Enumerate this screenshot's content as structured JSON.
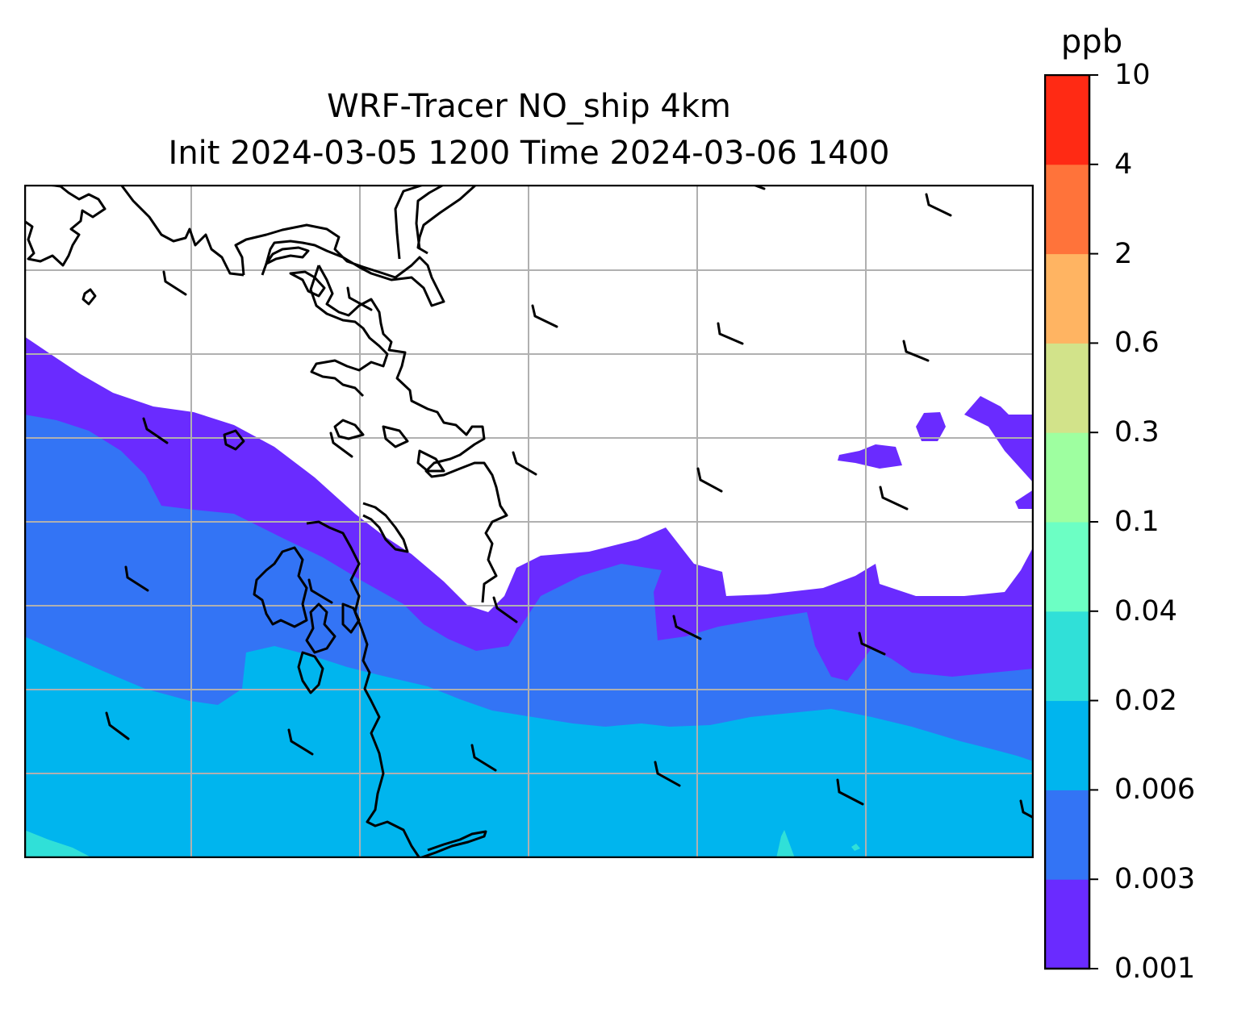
{
  "title": {
    "line1": "WRF-Tracer NO_ship 4km",
    "line2": "Init 2024-03-05 1200 Time 2024-03-06 1400"
  },
  "colorbar": {
    "unit": "ppb",
    "levels": [
      "0.001",
      "0.003",
      "0.006",
      "0.02",
      "0.04",
      "0.1",
      "0.3",
      "0.6",
      "2",
      "4",
      "10"
    ],
    "colors": [
      "#6a2bff",
      "#3374f5",
      "#00b5ee",
      "#30e0d8",
      "#6cffc4",
      "#9effa0",
      "#d2e38a",
      "#ffb462",
      "#ff733a",
      "#ff2a14"
    ]
  },
  "map": {
    "background": "#ffffff",
    "coastline_color": "#000000",
    "gridline_color": "#b0b0b0",
    "band_colors": {
      "c1": "#6a2bff",
      "c2": "#3374f5",
      "c3": "#00b5ee",
      "c4": "#30e0d8"
    }
  }
}
